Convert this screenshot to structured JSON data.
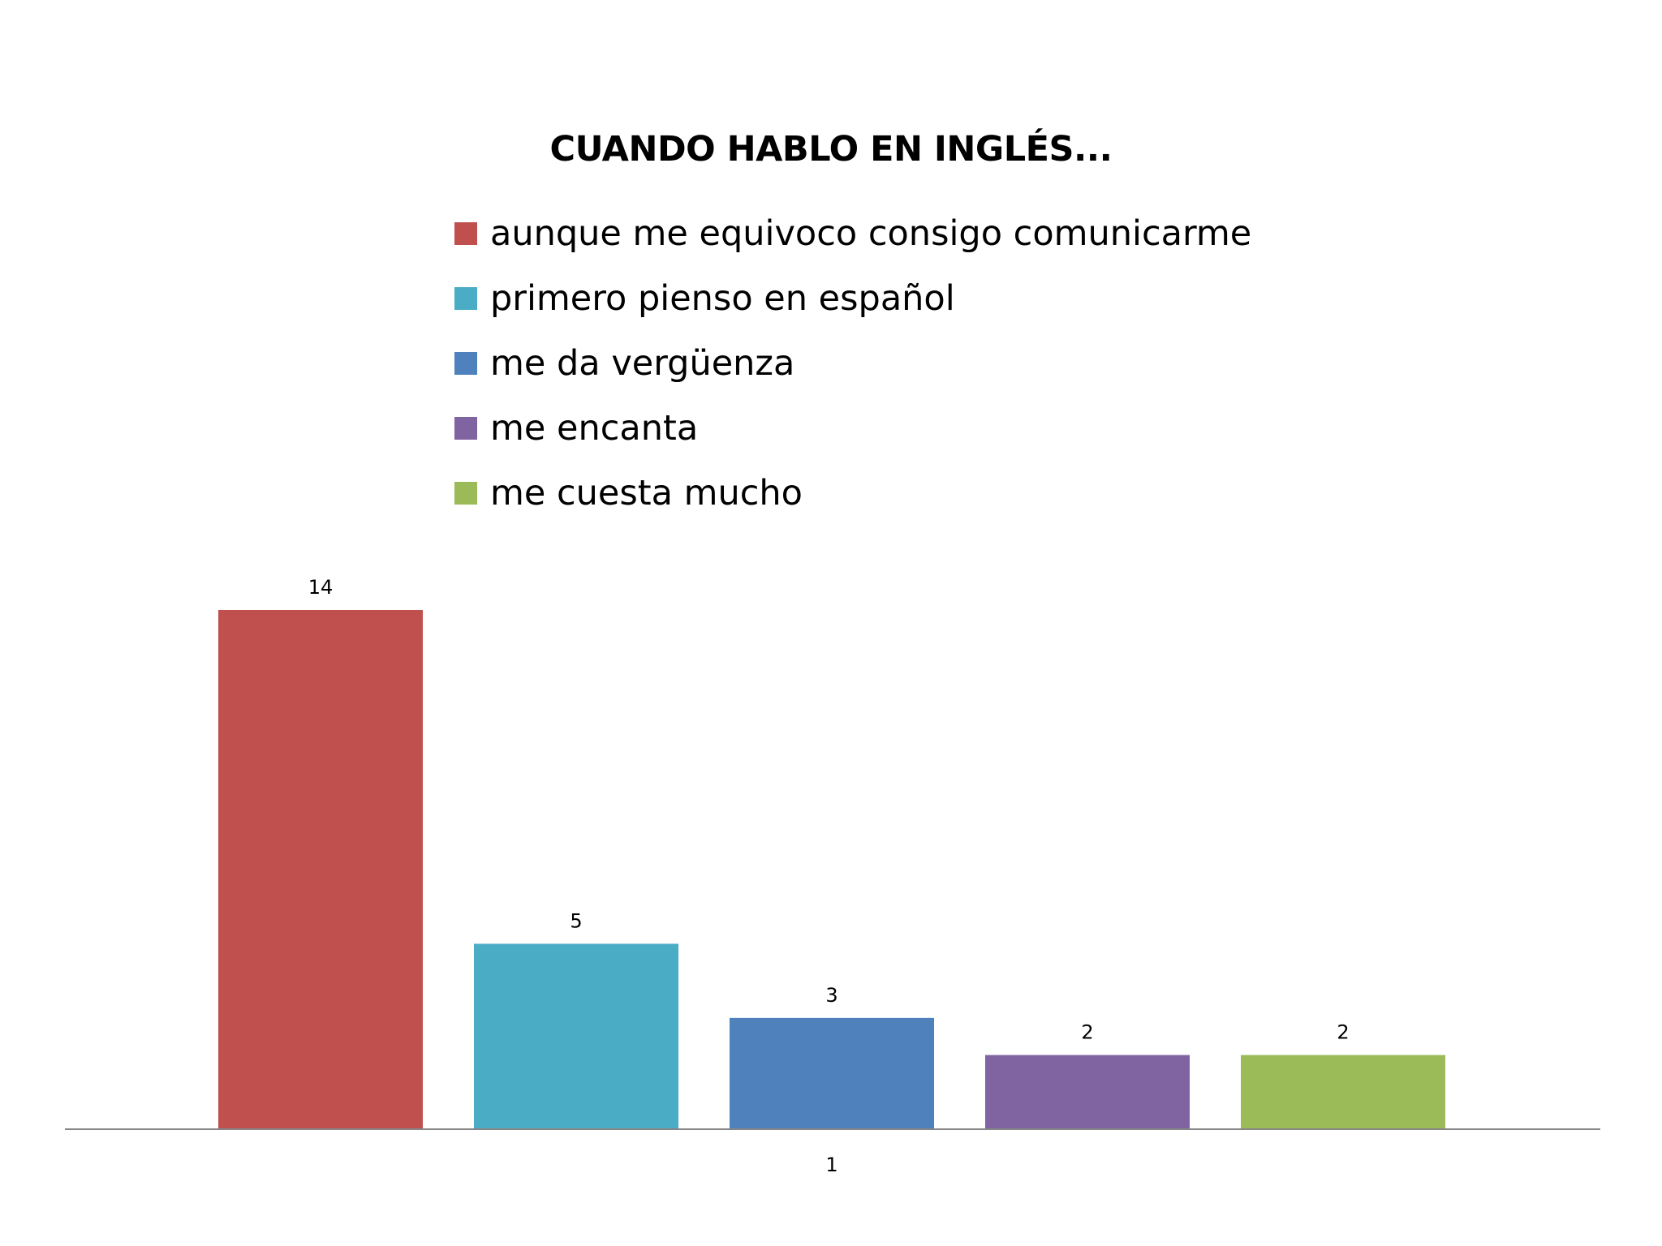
{
  "chart_data": {
    "type": "bar",
    "title": "CUANDO HABLO EN INGLÉS...",
    "categories": [
      "1"
    ],
    "series": [
      {
        "name": "aunque me equivoco consigo comunicarme",
        "values": [
          14
        ],
        "color": "#C0504D"
      },
      {
        "name": "primero pienso en español",
        "values": [
          5
        ],
        "color": "#4BACC6"
      },
      {
        "name": "me da vergüenza",
        "values": [
          3
        ],
        "color": "#4F81BD"
      },
      {
        "name": "me encanta",
        "values": [
          2
        ],
        "color": "#8064A2"
      },
      {
        "name": "me cuesta mucho",
        "values": [
          2
        ],
        "color": "#9BBB59"
      }
    ],
    "data_labels": [
      "14",
      "5",
      "3",
      "2",
      "2"
    ],
    "ylim": [
      0,
      14
    ],
    "grid": false,
    "legend_position": "top",
    "xlabel": "",
    "ylabel": ""
  }
}
